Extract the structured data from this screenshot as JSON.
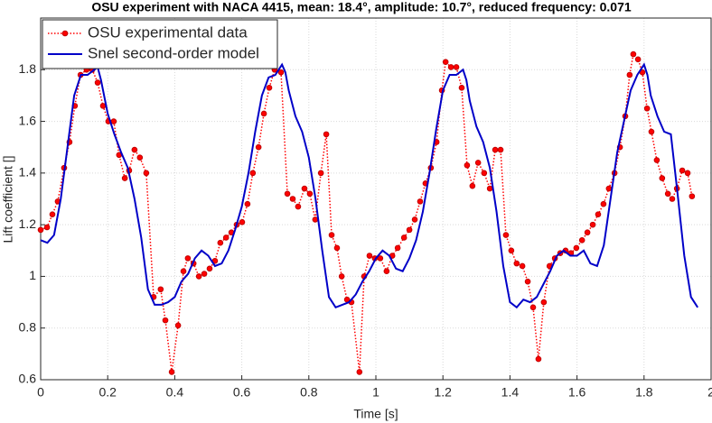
{
  "chart_data": {
    "type": "line",
    "title": "OSU experiment with NACA 4415, mean: 18.4°, amplitude: 10.7°, reduced frequency: 0.071",
    "xlabel": "Time [s]",
    "ylabel": "Lift coefficient []",
    "xlim": [
      0,
      2
    ],
    "ylim": [
      0.6,
      2.0
    ],
    "xticks": [
      0,
      0.2,
      0.4,
      0.6,
      0.8,
      1,
      1.2,
      1.4,
      1.6,
      1.8,
      2
    ],
    "yticks": [
      0.6,
      0.8,
      1,
      1.2,
      1.4,
      1.6,
      1.8
    ],
    "grid": true,
    "legend": "upper left",
    "series": [
      {
        "name": "OSU experimental data",
        "color": "#ff0000",
        "style": "dotted",
        "marker": "circle",
        "x": [
          0,
          0.019,
          0.035,
          0.051,
          0.07,
          0.086,
          0.102,
          0.119,
          0.137,
          0.154,
          0.17,
          0.186,
          0.202,
          0.218,
          0.234,
          0.251,
          0.264,
          0.28,
          0.296,
          0.315,
          0.337,
          0.358,
          0.372,
          0.391,
          0.41,
          0.426,
          0.439,
          0.456,
          0.472,
          0.488,
          0.504,
          0.52,
          0.536,
          0.553,
          0.569,
          0.585,
          0.601,
          0.617,
          0.633,
          0.65,
          0.666,
          0.682,
          0.698,
          0.717,
          0.736,
          0.752,
          0.768,
          0.787,
          0.803,
          0.819,
          0.836,
          0.852,
          0.868,
          0.884,
          0.898,
          0.914,
          0.927,
          0.951,
          0.965,
          0.981,
          0.997,
          1.013,
          1.032,
          1.049,
          1.065,
          1.084,
          1.1,
          1.116,
          1.132,
          1.148,
          1.164,
          1.181,
          1.197,
          1.208,
          1.224,
          1.24,
          1.256,
          1.272,
          1.288,
          1.305,
          1.323,
          1.34,
          1.356,
          1.372,
          1.388,
          1.404,
          1.42,
          1.437,
          1.453,
          1.469,
          1.485,
          1.501,
          1.518,
          1.534,
          1.55,
          1.566,
          1.582,
          1.598,
          1.615,
          1.631,
          1.647,
          1.663,
          1.679,
          1.695,
          1.712,
          1.728,
          1.744,
          1.757,
          1.768,
          1.782,
          1.795,
          1.809,
          1.822,
          1.838,
          1.854,
          1.871,
          1.884,
          1.898,
          1.914,
          1.93,
          1.943
        ],
        "values": [
          1.18,
          1.19,
          1.24,
          1.29,
          1.42,
          1.52,
          1.66,
          1.78,
          1.8,
          1.8,
          1.75,
          1.66,
          1.6,
          1.6,
          1.47,
          1.38,
          1.41,
          1.49,
          1.46,
          1.4,
          0.92,
          0.95,
          0.83,
          0.63,
          0.81,
          1.02,
          1.07,
          1.05,
          1.0,
          1.01,
          1.03,
          1.06,
          1.13,
          1.15,
          1.17,
          1.2,
          1.21,
          1.28,
          1.4,
          1.5,
          1.63,
          1.73,
          1.8,
          1.79,
          1.32,
          1.3,
          1.27,
          1.34,
          1.32,
          1.22,
          1.4,
          1.55,
          1.16,
          1.11,
          1.0,
          0.91,
          0.9,
          0.63,
          1.0,
          1.08,
          1.07,
          1.07,
          1.02,
          1.08,
          1.11,
          1.15,
          1.18,
          1.22,
          1.29,
          1.36,
          1.42,
          1.52,
          1.72,
          1.83,
          1.81,
          1.81,
          1.73,
          1.43,
          1.35,
          1.44,
          1.4,
          1.34,
          1.49,
          1.49,
          1.16,
          1.1,
          1.05,
          1.04,
          0.98,
          0.88,
          0.68,
          0.9,
          1.04,
          1.07,
          1.09,
          1.1,
          1.09,
          1.11,
          1.14,
          1.17,
          1.2,
          1.24,
          1.28,
          1.34,
          1.4,
          1.5,
          1.62,
          1.78,
          1.86,
          1.84,
          1.79,
          1.65,
          1.56,
          1.45,
          1.38,
          1.32,
          1.3,
          1.34,
          1.41,
          1.4,
          1.31
        ]
      },
      {
        "name": "Snel second-order model",
        "color": "#0000c8",
        "style": "solid",
        "x": [
          0,
          0.02,
          0.04,
          0.06,
          0.08,
          0.1,
          0.12,
          0.14,
          0.16,
          0.17,
          0.18,
          0.2,
          0.22,
          0.24,
          0.26,
          0.28,
          0.3,
          0.32,
          0.34,
          0.36,
          0.38,
          0.4,
          0.42,
          0.44,
          0.46,
          0.48,
          0.5,
          0.52,
          0.54,
          0.56,
          0.58,
          0.6,
          0.62,
          0.64,
          0.66,
          0.68,
          0.7,
          0.72,
          0.73,
          0.74,
          0.76,
          0.78,
          0.8,
          0.82,
          0.84,
          0.86,
          0.88,
          0.9,
          0.92,
          0.94,
          0.96,
          0.98,
          1.0,
          1.02,
          1.04,
          1.06,
          1.08,
          1.1,
          1.12,
          1.14,
          1.16,
          1.18,
          1.2,
          1.22,
          1.24,
          1.26,
          1.27,
          1.28,
          1.3,
          1.32,
          1.34,
          1.36,
          1.38,
          1.4,
          1.42,
          1.44,
          1.46,
          1.48,
          1.5,
          1.52,
          1.54,
          1.56,
          1.58,
          1.6,
          1.62,
          1.64,
          1.66,
          1.68,
          1.7,
          1.72,
          1.74,
          1.76,
          1.78,
          1.8,
          1.81,
          1.82,
          1.84,
          1.86,
          1.88,
          1.9,
          1.92,
          1.94,
          1.96
        ],
        "values": [
          1.14,
          1.13,
          1.16,
          1.3,
          1.5,
          1.7,
          1.78,
          1.78,
          1.8,
          1.81,
          1.76,
          1.63,
          1.55,
          1.48,
          1.42,
          1.3,
          1.15,
          0.95,
          0.89,
          0.89,
          0.9,
          0.92,
          0.98,
          1.01,
          1.07,
          1.1,
          1.08,
          1.04,
          1.05,
          1.1,
          1.18,
          1.27,
          1.4,
          1.56,
          1.7,
          1.77,
          1.78,
          1.82,
          1.79,
          1.72,
          1.62,
          1.56,
          1.46,
          1.3,
          1.1,
          0.92,
          0.88,
          0.89,
          0.9,
          0.93,
          0.98,
          1.02,
          1.07,
          1.1,
          1.08,
          1.03,
          1.02,
          1.07,
          1.14,
          1.25,
          1.4,
          1.57,
          1.72,
          1.78,
          1.78,
          1.8,
          1.76,
          1.68,
          1.58,
          1.52,
          1.42,
          1.25,
          1.04,
          0.9,
          0.88,
          0.91,
          0.9,
          0.92,
          0.97,
          1.02,
          1.08,
          1.1,
          1.08,
          1.08,
          1.1,
          1.05,
          1.04,
          1.12,
          1.3,
          1.48,
          1.6,
          1.72,
          1.78,
          1.82,
          1.78,
          1.7,
          1.62,
          1.56,
          1.55,
          1.32,
          1.08,
          0.92,
          0.88
        ]
      }
    ]
  }
}
